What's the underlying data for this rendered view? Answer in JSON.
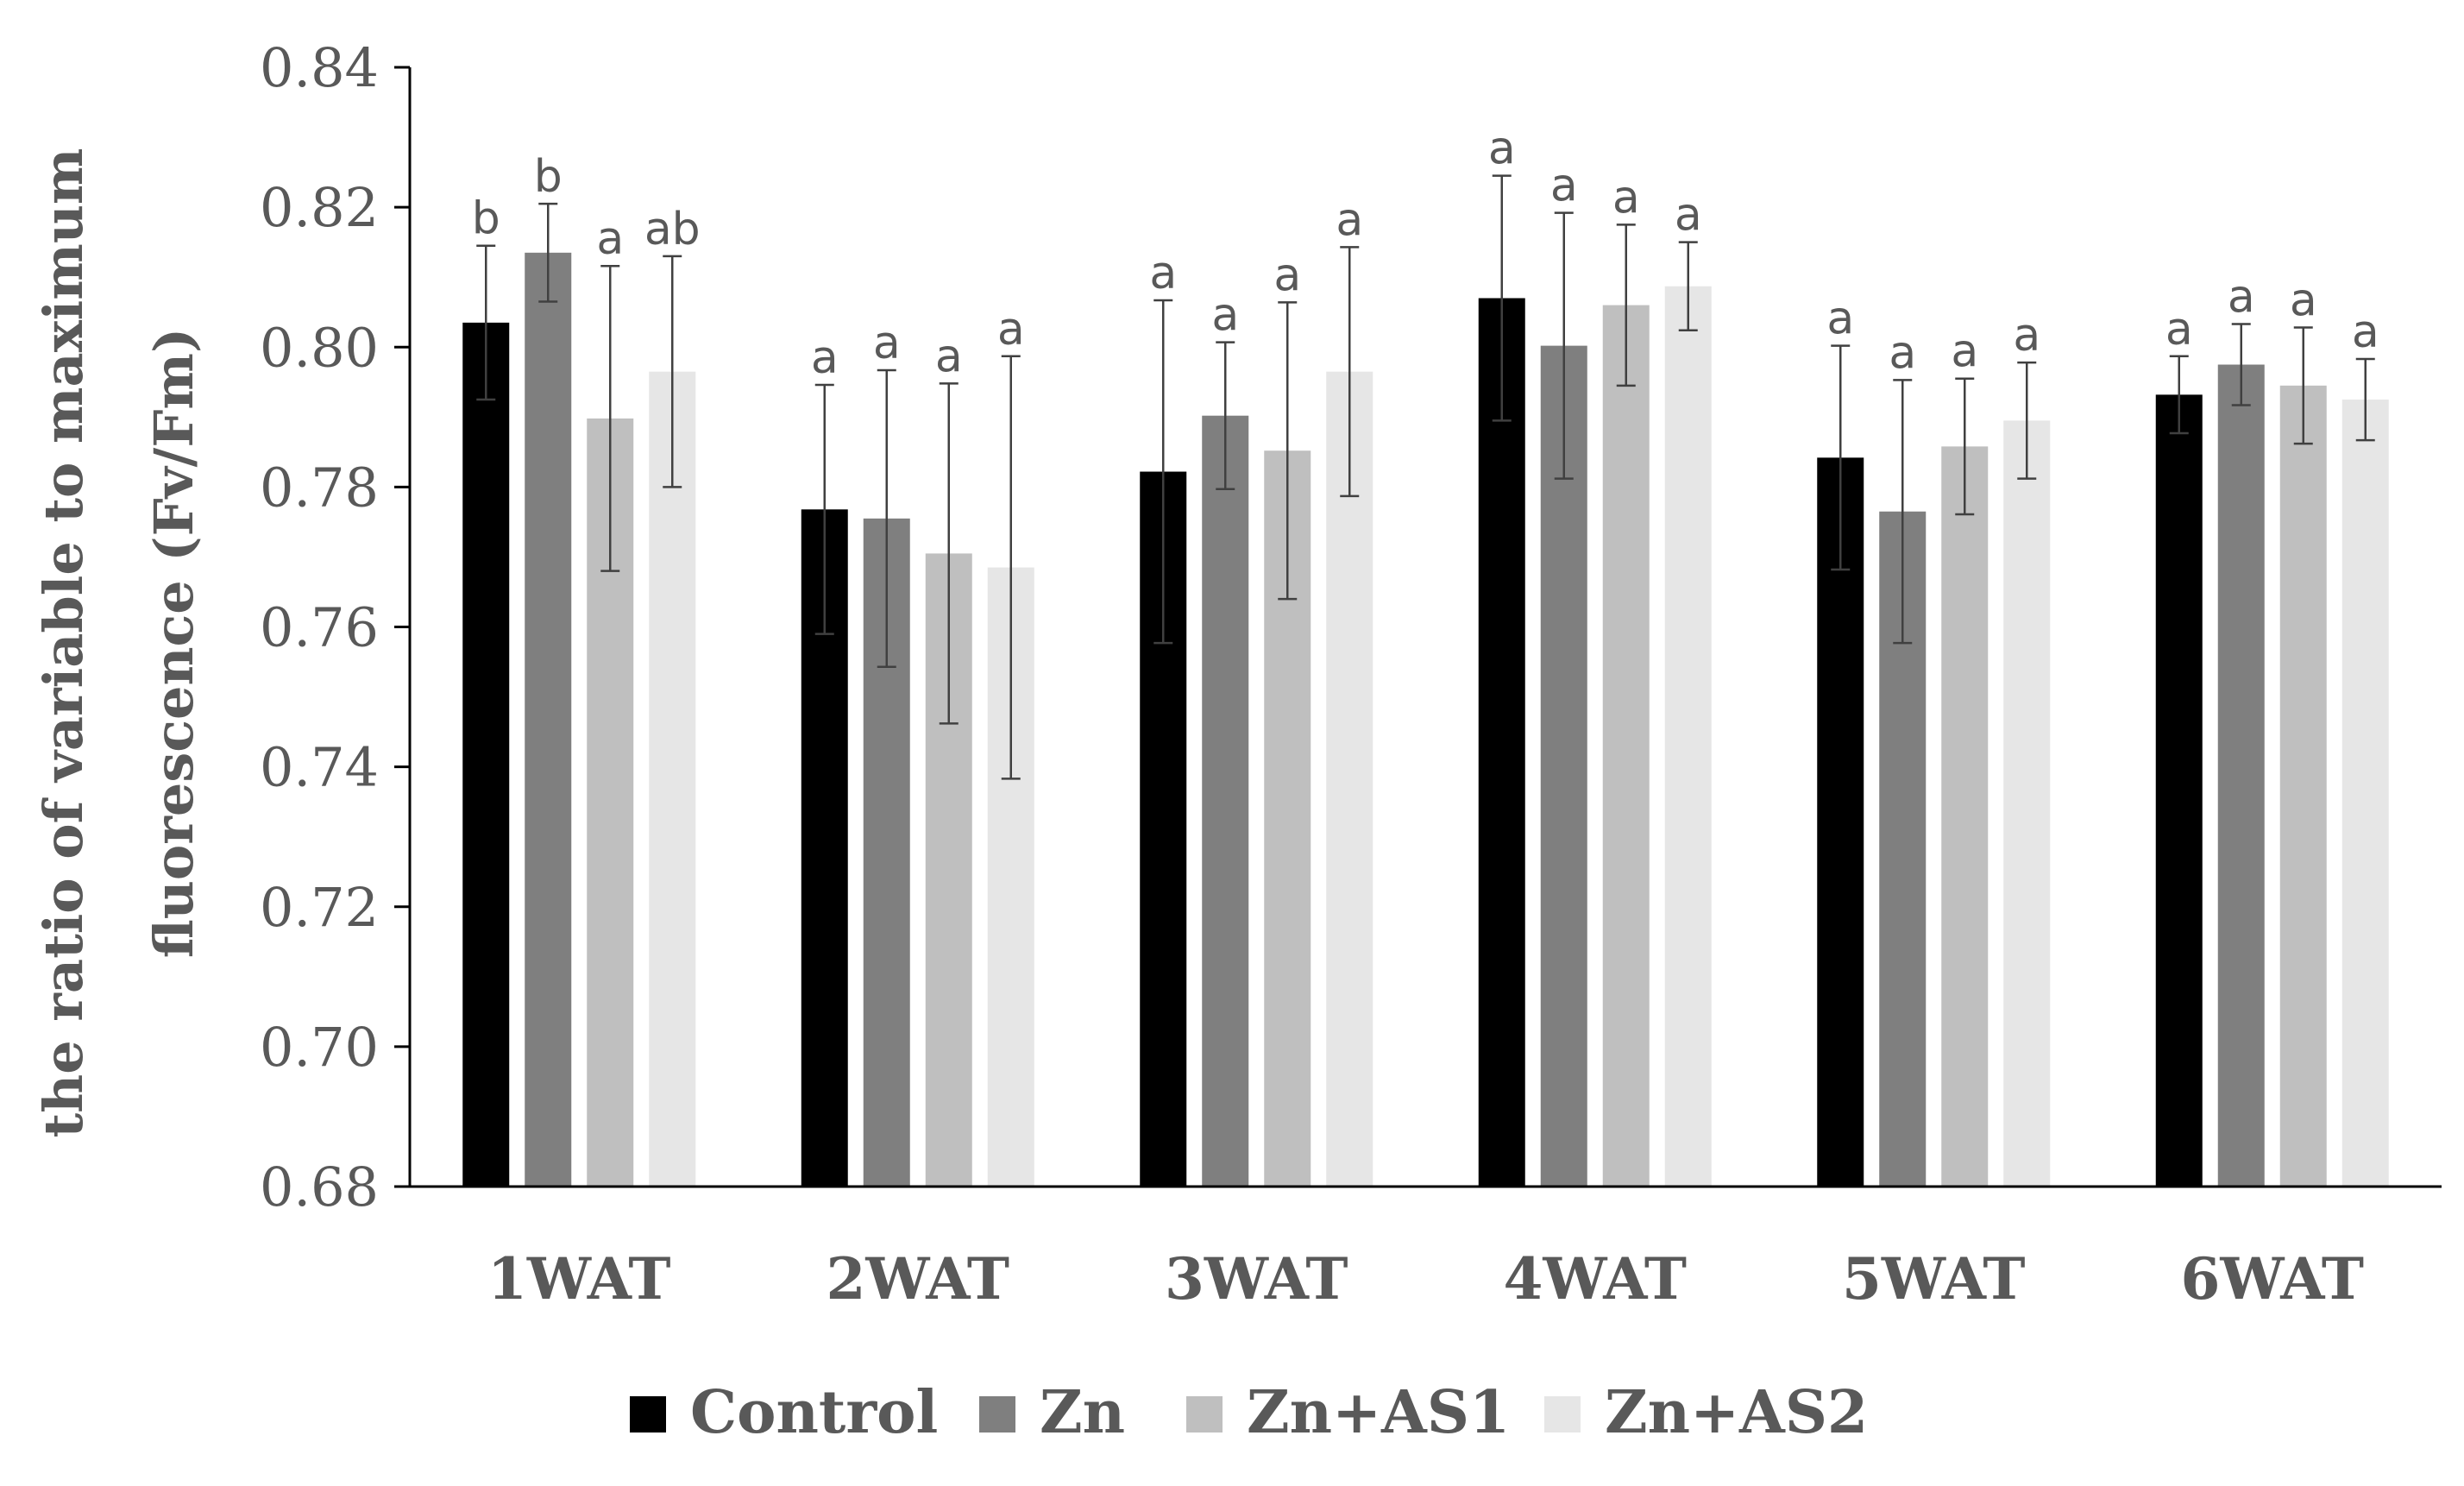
{
  "chart_data": {
    "type": "bar",
    "title": "",
    "xlabel": "",
    "ylabel": "the ratio of variable to maximum fluorescence (Fv/Fm)",
    "ylabel_lines": [
      "the ratio of variable to maximum",
      "fluorescence (Fv/Fm)"
    ],
    "ylim": [
      0.68,
      0.84
    ],
    "yticks": [
      0.68,
      0.7,
      0.72,
      0.74,
      0.76,
      0.78,
      0.8,
      0.82,
      0.84
    ],
    "ytick_labels": [
      "0.68",
      "0.70",
      "0.72",
      "0.74",
      "0.76",
      "0.78",
      "0.80",
      "0.82",
      "0.84"
    ],
    "grid": false,
    "legend_position": "bottom",
    "categories": [
      "1WAT",
      "2WAT",
      "3WAT",
      "4WAT",
      "5WAT",
      "6WAT"
    ],
    "series": [
      {
        "name": "Control",
        "color": "#000000",
        "values": [
          0.8035,
          0.7768,
          0.7822,
          0.807,
          0.7842,
          0.7932
        ],
        "errors": [
          0.011,
          0.0178,
          0.0245,
          0.0175,
          0.016,
          0.0055
        ],
        "letters": [
          "b",
          "a",
          "a",
          "a",
          "a",
          "a"
        ]
      },
      {
        "name": "Zn",
        "color": "#7f7f7f",
        "values": [
          0.8135,
          0.7755,
          0.7902,
          0.8002,
          0.7765,
          0.7975
        ],
        "errors": [
          0.007,
          0.0212,
          0.0105,
          0.019,
          0.0188,
          0.0058
        ],
        "letters": [
          "b",
          "a",
          "a",
          "a",
          "a",
          "a"
        ]
      },
      {
        "name": "Zn+AS1",
        "color": "#bfbfbf",
        "values": [
          0.7898,
          0.7705,
          0.7852,
          0.806,
          0.7858,
          0.7945
        ],
        "errors": [
          0.0218,
          0.0243,
          0.0212,
          0.0115,
          0.0097,
          0.0083
        ],
        "letters": [
          "a",
          "a",
          "a",
          "a",
          "a",
          "a"
        ]
      },
      {
        "name": "Zn+AS2",
        "color": "#e6e6e6",
        "values": [
          0.7965,
          0.7685,
          0.7965,
          0.8087,
          0.7895,
          0.7925
        ],
        "errors": [
          0.0165,
          0.0302,
          0.0178,
          0.0063,
          0.0083,
          0.0058
        ],
        "letters": [
          "ab",
          "a",
          "a",
          "a",
          "a",
          "a"
        ]
      }
    ]
  }
}
